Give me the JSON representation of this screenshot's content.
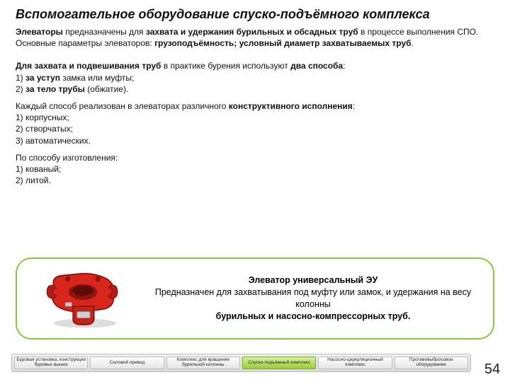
{
  "title": "Вспомогательное оборудование спуско-подъёмного комплекса",
  "body": {
    "p1a": "Элеваторы",
    "p1b": " предназначены для ",
    "p1c": "захвата и удержания бурильных и обсадных труб",
    "p1d": " в процессе выполнения СПО. Основные параметры элеваторов: ",
    "p1e": "грузоподъёмность; условный диаметр захватываемых труб",
    "p1f": ".",
    "p2a": "Для захвата и подвешивания труб",
    "p2b": " в практике бурения используют ",
    "p2c": "два способа",
    "p2d": ":",
    "l1": "1) ",
    "l1b": "за уступ",
    "l1c": " замка или муфты;",
    "l2": "2) ",
    "l2b": "за тело трубы",
    "l2c": " (обжатие).",
    "p3a": "Каждый способ реализован в элеваторах различного ",
    "p3b": "конструктивного исполнения",
    "p3c": ":",
    "l3": "1) корпусных;",
    "l4": "2) створчатых;",
    "l5": "3) автоматических.",
    "p4": "По способу изготовления:",
    "l6": "1) кованый;",
    "l7": "2) литой."
  },
  "panel": {
    "title": "Элеватор универсальный ЭУ",
    "desc1": "Предназначен для захватывания под муфту или замок, и удержания на весу колонны",
    "desc2": "бурильных и насосно-компрессорных труб."
  },
  "nav": {
    "items": [
      {
        "label": "Буровая установка, конструкции буровых вышек",
        "active": false
      },
      {
        "label": "Силовой привод",
        "active": false
      },
      {
        "label": "Комплекс для вращения бурильной колонны",
        "active": false
      },
      {
        "label": "Спуско-подъёмный комплекс",
        "active": true
      },
      {
        "label": "Насосно-циркуляционный комплекс",
        "active": false
      },
      {
        "label": "Противовыбросовое оборудование",
        "active": false
      }
    ]
  },
  "page": "54",
  "colors": {
    "accent": "#8cc63f",
    "elevator_body": "#d8261c",
    "elevator_shadow": "#8e1410",
    "elevator_metal": "#cfcfcf"
  }
}
